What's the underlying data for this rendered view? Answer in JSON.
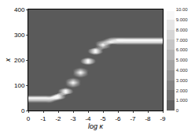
{
  "chart_data": {
    "type": "contour",
    "x_label": "log κ",
    "y_label": "x",
    "x": [
      0,
      -0.5,
      -1,
      -1.5,
      -2,
      -2.5,
      -3,
      -3.5,
      -4,
      -4.5,
      -5,
      -5.5,
      -6,
      -6.5,
      -7,
      -7.5,
      -8,
      -8.5,
      -9
    ],
    "y": [
      0,
      10,
      20,
      30,
      40,
      50,
      60,
      70,
      80,
      90,
      100,
      110,
      120,
      130,
      140,
      150,
      160,
      170,
      180,
      190,
      200,
      210,
      220,
      230,
      240,
      250,
      260,
      270,
      280,
      290,
      300,
      310,
      320,
      330,
      340,
      350,
      360,
      370,
      380,
      390,
      400
    ],
    "z": [
      [
        0,
        0,
        0,
        0,
        0,
        0,
        0,
        0,
        0,
        0,
        0,
        0,
        0,
        0,
        0,
        0,
        0,
        0,
        0
      ],
      [
        0,
        0,
        0,
        0,
        0,
        0,
        0,
        0,
        0,
        0,
        0,
        0,
        0,
        0,
        0,
        0,
        0,
        0,
        0
      ],
      [
        0,
        0,
        0,
        0,
        0,
        0,
        0,
        0,
        0,
        0,
        0,
        0,
        0,
        0,
        0,
        0,
        0,
        0,
        0
      ],
      [
        0,
        0,
        0,
        0,
        0,
        0,
        0,
        0,
        0,
        0,
        0,
        0,
        0,
        0,
        0,
        0,
        0,
        0,
        0
      ],
      [
        6,
        6,
        6,
        6,
        0,
        0,
        0,
        0,
        0,
        0,
        0,
        0,
        0,
        0,
        0,
        0,
        0,
        0,
        0
      ],
      [
        10,
        10,
        10,
        10,
        10,
        0,
        0,
        0,
        0,
        0,
        0,
        0,
        0,
        0,
        0,
        0,
        0,
        0,
        0
      ],
      [
        0,
        0,
        0,
        0,
        10,
        0,
        0,
        0,
        0,
        0,
        0,
        0,
        0,
        0,
        0,
        0,
        0,
        0,
        0
      ],
      [
        0,
        0,
        0,
        0,
        0,
        10,
        0,
        0,
        0,
        0,
        0,
        0,
        0,
        0,
        0,
        0,
        0,
        0,
        0
      ],
      [
        0,
        0,
        0,
        0,
        0,
        10,
        0,
        0,
        0,
        0,
        0,
        0,
        0,
        0,
        0,
        0,
        0,
        0,
        0
      ],
      [
        0,
        0,
        0,
        0,
        0,
        0,
        0,
        0,
        0,
        0,
        0,
        0,
        0,
        0,
        0,
        0,
        0,
        0,
        0
      ],
      [
        0,
        0,
        0,
        0,
        0,
        0,
        5,
        0,
        0,
        0,
        0,
        0,
        0,
        0,
        0,
        0,
        0,
        0,
        0
      ],
      [
        0,
        0,
        0,
        0,
        0,
        0,
        10,
        0,
        0,
        0,
        0,
        0,
        0,
        0,
        0,
        0,
        0,
        0,
        0
      ],
      [
        0,
        0,
        0,
        0,
        0,
        0,
        5,
        0,
        0,
        0,
        0,
        0,
        0,
        0,
        0,
        0,
        0,
        0,
        0
      ],
      [
        0,
        0,
        0,
        0,
        0,
        0,
        0,
        0,
        0,
        0,
        0,
        0,
        0,
        0,
        0,
        0,
        0,
        0,
        0
      ],
      [
        0,
        0,
        0,
        0,
        0,
        0,
        0,
        5,
        0,
        0,
        0,
        0,
        0,
        0,
        0,
        0,
        0,
        0,
        0
      ],
      [
        0,
        0,
        0,
        0,
        0,
        0,
        0,
        10,
        0,
        0,
        0,
        0,
        0,
        0,
        0,
        0,
        0,
        0,
        0
      ],
      [
        0,
        0,
        0,
        0,
        0,
        0,
        0,
        5,
        0,
        0,
        0,
        0,
        0,
        0,
        0,
        0,
        0,
        0,
        0
      ],
      [
        0,
        0,
        0,
        0,
        0,
        0,
        0,
        0,
        0,
        0,
        0,
        0,
        0,
        0,
        0,
        0,
        0,
        0,
        0
      ],
      [
        0,
        0,
        0,
        0,
        0,
        0,
        0,
        0,
        0,
        0,
        0,
        0,
        0,
        0,
        0,
        0,
        0,
        0,
        0
      ],
      [
        0,
        0,
        0,
        0,
        0,
        0,
        0,
        0,
        10,
        0,
        0,
        0,
        0,
        0,
        0,
        0,
        0,
        0,
        0
      ],
      [
        0,
        0,
        0,
        0,
        0,
        0,
        0,
        0,
        10,
        0,
        0,
        0,
        0,
        0,
        0,
        0,
        0,
        0,
        0
      ],
      [
        0,
        0,
        0,
        0,
        0,
        0,
        0,
        0,
        0,
        0,
        0,
        0,
        0,
        0,
        0,
        0,
        0,
        0,
        0
      ],
      [
        0,
        0,
        0,
        0,
        0,
        0,
        0,
        0,
        0,
        0,
        0,
        0,
        0,
        0,
        0,
        0,
        0,
        0,
        0
      ],
      [
        0,
        0,
        0,
        0,
        0,
        0,
        0,
        0,
        0,
        10,
        0,
        0,
        0,
        0,
        0,
        0,
        0,
        0,
        0
      ],
      [
        0,
        0,
        0,
        0,
        0,
        0,
        0,
        0,
        0,
        10,
        0,
        0,
        0,
        0,
        0,
        0,
        0,
        0,
        0
      ],
      [
        0,
        0,
        0,
        0,
        0,
        0,
        0,
        0,
        0,
        0,
        5,
        0,
        0,
        0,
        0,
        0,
        0,
        0,
        0
      ],
      [
        0,
        0,
        0,
        0,
        0,
        0,
        0,
        0,
        0,
        0,
        10,
        0,
        0,
        0,
        0,
        0,
        0,
        0,
        0
      ],
      [
        0,
        0,
        0,
        0,
        0,
        0,
        0,
        0,
        0,
        0,
        5,
        10,
        8,
        8,
        8,
        8,
        8,
        8,
        8
      ],
      [
        0,
        0,
        0,
        0,
        0,
        0,
        0,
        0,
        0,
        0,
        0,
        6,
        10,
        10,
        10,
        10,
        10,
        10,
        10
      ],
      [
        0,
        0,
        0,
        0,
        0,
        0,
        0,
        0,
        0,
        0,
        0,
        0,
        0,
        0,
        0,
        0,
        0,
        0,
        0
      ],
      [
        0,
        0,
        0,
        0,
        0,
        0,
        0,
        0,
        0,
        0,
        0,
        0,
        0,
        0,
        0,
        0,
        0,
        0,
        0
      ],
      [
        0,
        0,
        0,
        0,
        0,
        0,
        0,
        0,
        0,
        0,
        0,
        0,
        0,
        0,
        0,
        0,
        0,
        0,
        0
      ],
      [
        0,
        0,
        0,
        0,
        0,
        0,
        0,
        0,
        0,
        0,
        0,
        0,
        0,
        0,
        0,
        0,
        0,
        0,
        0
      ],
      [
        0,
        0,
        0,
        0,
        0,
        0,
        0,
        0,
        0,
        0,
        0,
        0,
        0,
        0,
        0,
        0,
        0,
        0,
        0
      ],
      [
        0,
        0,
        0,
        0,
        0,
        0,
        0,
        0,
        0,
        0,
        0,
        0,
        0,
        0,
        0,
        0,
        0,
        0,
        0
      ],
      [
        0,
        0,
        0,
        0,
        0,
        0,
        0,
        0,
        0,
        0,
        0,
        0,
        0,
        0,
        0,
        0,
        0,
        0,
        0
      ],
      [
        0,
        0,
        0,
        0,
        0,
        0,
        0,
        0,
        0,
        0,
        0,
        0,
        0,
        0,
        0,
        0,
        0,
        0,
        0
      ],
      [
        0,
        0,
        0,
        0,
        0,
        0,
        0,
        0,
        0,
        0,
        0,
        0,
        0,
        0,
        0,
        0,
        0,
        0,
        0
      ],
      [
        0,
        0,
        0,
        0,
        0,
        0,
        0,
        0,
        0,
        0,
        0,
        0,
        0,
        0,
        0,
        0,
        0,
        0,
        0
      ],
      [
        0,
        0,
        0,
        0,
        0,
        0,
        0,
        0,
        0,
        0,
        0,
        0,
        0,
        0,
        0,
        0,
        0,
        0,
        0
      ],
      [
        0,
        0,
        0,
        0,
        0,
        0,
        0,
        0,
        0,
        0,
        0,
        0,
        0,
        0,
        0,
        0,
        0,
        0,
        0
      ]
    ],
    "xlim": [
      0,
      -9
    ],
    "xticks": [
      0,
      -1,
      -2,
      -3,
      -4,
      -5,
      -6,
      -7,
      -8,
      -9
    ],
    "ylim": [
      0,
      400
    ],
    "yticks": [
      0,
      100,
      200,
      300,
      400
    ],
    "colorbar": {
      "range": [
        0,
        10
      ],
      "ticks": [
        0,
        {
          "value": 1,
          "label": "1.000"
        },
        {
          "value": 2,
          "label": "2.000"
        },
        {
          "value": 3,
          "label": "3.000"
        },
        {
          "value": 4,
          "label": "4.000"
        },
        {
          "value": 5,
          "label": "5.000"
        },
        {
          "value": 6,
          "label": "6.000"
        },
        {
          "value": 7,
          "label": "7.000"
        },
        {
          "value": 8,
          "label": "8.000"
        },
        {
          "value": 9,
          "label": "9.000"
        },
        {
          "value": 10,
          "label": "10.00"
        }
      ]
    }
  }
}
